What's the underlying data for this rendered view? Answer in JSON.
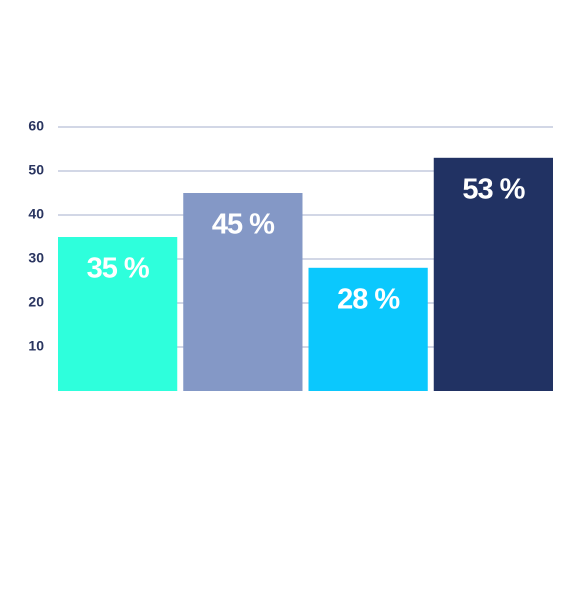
{
  "chart_data": {
    "type": "bar",
    "categories": [
      null,
      null,
      null,
      null
    ],
    "values": [
      35,
      45,
      28,
      53
    ],
    "value_labels": [
      "35 %",
      "45 %",
      "28 %",
      "53 %"
    ],
    "colors": [
      "#2effdc",
      "#8498c6",
      "#0bc8fd",
      "#213263"
    ],
    "ylim": [
      0,
      60
    ],
    "yticks": [
      10,
      20,
      30,
      40,
      50,
      60
    ],
    "grid": true
  }
}
